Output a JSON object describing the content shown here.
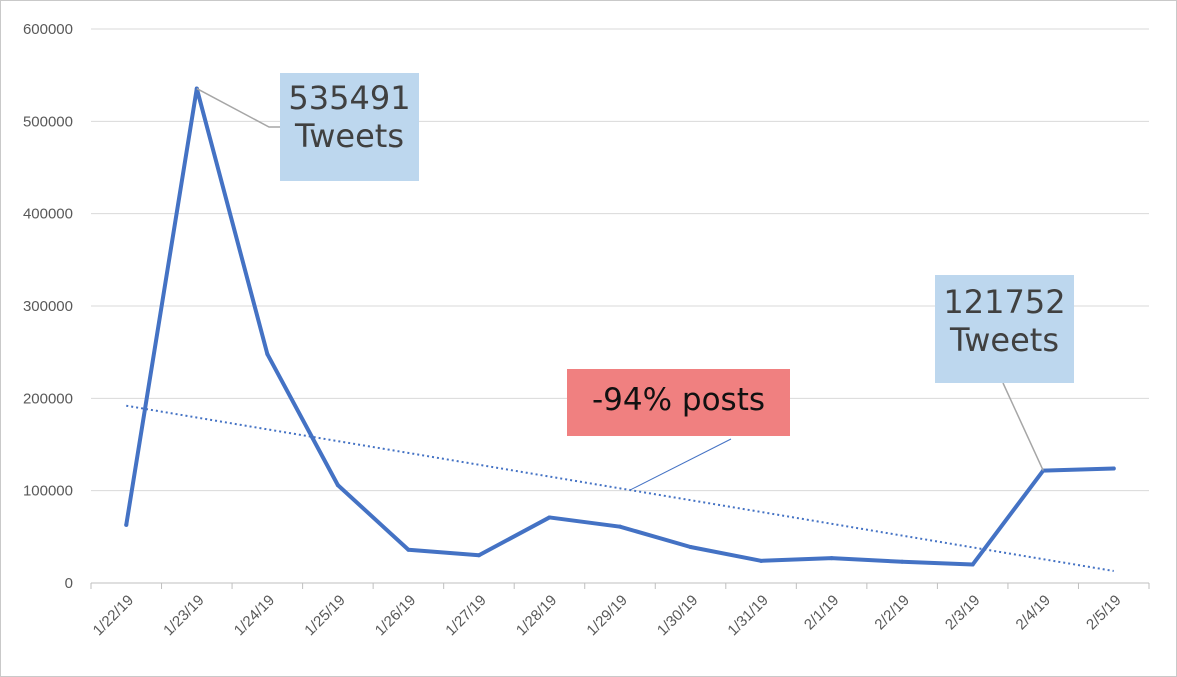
{
  "chart_data": {
    "type": "line",
    "title": "",
    "xlabel": "",
    "ylabel": "",
    "categories": [
      "1/22/19",
      "1/23/19",
      "1/24/19",
      "1/25/19",
      "1/26/19",
      "1/27/19",
      "1/28/19",
      "1/29/19",
      "1/30/19",
      "1/31/19",
      "2/1/19",
      "2/2/19",
      "2/3/19",
      "2/4/19",
      "2/5/19"
    ],
    "series": [
      {
        "values": [
          63000,
          535491,
          248000,
          106000,
          36000,
          30000,
          71000,
          61000,
          39000,
          24000,
          27000,
          23000,
          20000,
          121752,
          124000
        ],
        "color": "#4472c4"
      }
    ],
    "trendline": {
      "type": "linear",
      "style": "dotted",
      "color": "#4472c4",
      "start": 192000,
      "end": 13000
    },
    "ylim": [
      0,
      600000
    ],
    "yticks": [
      "0",
      "100000",
      "200000",
      "300000",
      "400000",
      "500000",
      "600000"
    ],
    "grid": true,
    "legend": "none",
    "annotations": [
      {
        "id": "peak",
        "lines": [
          "535491",
          "Tweets"
        ],
        "color": "#bdd7ee",
        "points_to_index": 1
      },
      {
        "id": "end",
        "lines": [
          "121752",
          "Tweets"
        ],
        "color": "#bdd7ee",
        "points_to_index": 13
      },
      {
        "id": "drop",
        "lines": [
          "-94% posts"
        ],
        "color": "#f08080",
        "points_to": "trendline"
      }
    ]
  }
}
